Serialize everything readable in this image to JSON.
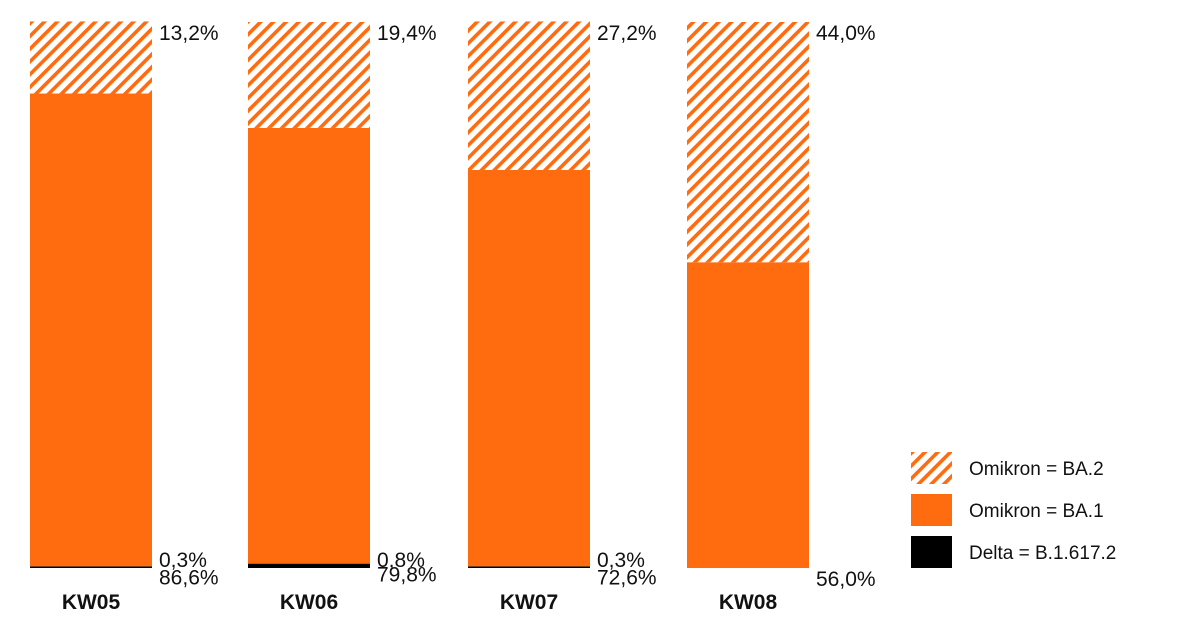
{
  "chart_data": {
    "type": "bar",
    "stacked": true,
    "categories": [
      "KW05",
      "KW06",
      "KW07",
      "KW08"
    ],
    "series": [
      {
        "name": "Delta = B.1.617.2",
        "values": [
          0.3,
          0.8,
          0.3,
          0.0
        ],
        "labels": [
          "0,3%",
          "0,8%",
          "0,3%",
          ""
        ],
        "color": "#000000",
        "pattern": "solid"
      },
      {
        "name": "Omikron = BA.1",
        "values": [
          86.6,
          79.8,
          72.6,
          56.0
        ],
        "labels": [
          "86,6%",
          "79,8%",
          "72,6%",
          "56,0%"
        ],
        "color": "#FF6B0F",
        "pattern": "solid"
      },
      {
        "name": "Omikron = BA.2",
        "values": [
          13.2,
          19.4,
          27.2,
          44.0
        ],
        "labels": [
          "13,2%",
          "19,4%",
          "27,2%",
          "44,0%"
        ],
        "color": "#FF6B0F",
        "pattern": "hatched"
      }
    ],
    "ylim": [
      0,
      100
    ],
    "grid": false,
    "legend": {
      "position": "bottom-right",
      "order": [
        "Omikron = BA.2",
        "Omikron = BA.1",
        "Delta = B.1.617.2"
      ]
    }
  }
}
